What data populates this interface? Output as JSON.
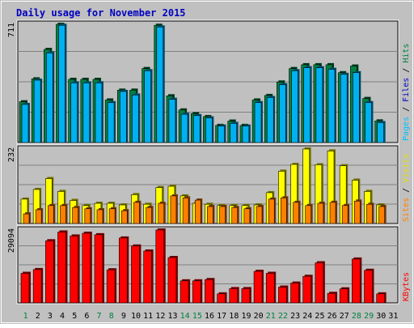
{
  "chart_data": {
    "type": "bar",
    "title": "Daily usage for November 2015",
    "days": [
      "1",
      "2",
      "3",
      "4",
      "5",
      "6",
      "7",
      "8",
      "9",
      "10",
      "11",
      "12",
      "13",
      "14",
      "15",
      "16",
      "17",
      "18",
      "19",
      "20",
      "21",
      "22",
      "23",
      "24",
      "25",
      "26",
      "27",
      "28",
      "29",
      "30",
      "31"
    ],
    "weekend_days": [
      1,
      7,
      8,
      14,
      15,
      21,
      22,
      28,
      29
    ],
    "colors": {
      "background": "#c0c0c0",
      "frame": "#ffffff",
      "title": "#0000c0",
      "hits": "#008040",
      "files": "#00b0f0",
      "pages": "#00c0ff",
      "visits": "#ffff00",
      "sites": "#ff8000",
      "kbytes": "#ff0000",
      "weekend_label": "#008040",
      "weekday_label": "#000000"
    },
    "panels": {
      "top": {
        "max_label": "711",
        "ymax": 711,
        "labels": {
          "pages": "Pages",
          "files": "Files",
          "hits": "Hits",
          "sep": " / "
        },
        "series": [
          {
            "name": "Hits",
            "values": [
              245,
              383,
              560,
              711,
              380,
              380,
              380,
              256,
              315,
              315,
              445,
              705,
              281,
              196,
              174,
              156,
              103,
              129,
              103,
              256,
              283,
              364,
              445,
              468,
              468,
              468,
              420,
              460,
              265,
              130,
              0
            ]
          },
          {
            "name": "Files",
            "values": [
              229,
              375,
              539,
              705,
              359,
              359,
              359,
              240,
              307,
              286,
              432,
              695,
              260,
              170,
              162,
              148,
              99,
              115,
              99,
              240,
              271,
              348,
              432,
              450,
              450,
              440,
              410,
              420,
              240,
              120,
              0
            ]
          }
        ]
      },
      "middle": {
        "max_label": "232",
        "ymax": 232,
        "labels": {
          "visits": "Visits",
          "sites": "Sites",
          "sep": " / "
        },
        "series": [
          {
            "name": "Visits",
            "values": [
              76,
              106,
              140,
              100,
              72,
              56,
              63,
              63,
              58,
              90,
              60,
              112,
              116,
              86,
              63,
              60,
              56,
              56,
              56,
              58,
              96,
              163,
              184,
              232,
              183,
              226,
              180,
              135,
              100,
              58,
              0
            ]
          },
          {
            "name": "Sites",
            "values": [
              30,
              43,
              56,
              56,
              50,
              46,
              43,
              46,
              40,
              66,
              50,
              63,
              86,
              80,
              73,
              53,
              53,
              50,
              46,
              53,
              76,
              80,
              66,
              56,
              63,
              66,
              56,
              70,
              60,
              53,
              0
            ]
          }
        ]
      },
      "bottom": {
        "max_label": "29094",
        "ymax": 29094,
        "labels": {
          "kbytes": "KBytes"
        },
        "series": [
          {
            "name": "KBytes",
            "values": [
              11800,
              13300,
              24800,
              28300,
              26700,
              27800,
              27200,
              13200,
              25900,
              22700,
              20700,
              29094,
              18100,
              8800,
              8800,
              9300,
              3600,
              5700,
              5700,
              12600,
              11800,
              6300,
              7900,
              10600,
              16000,
              3800,
              5600,
              17500,
              13000,
              3600,
              0
            ]
          }
        ]
      }
    }
  }
}
